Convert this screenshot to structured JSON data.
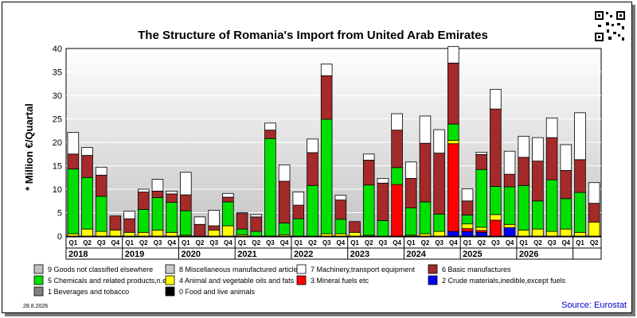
{
  "chart_data": {
    "type": "bar",
    "stacked": true,
    "title": "The Structure of Romania's Import from United Arab Emirates",
    "ylabel": "* Million €/Quartal",
    "ylim": [
      0,
      40
    ],
    "yticks": [
      0,
      5,
      10,
      15,
      20,
      25,
      30,
      35,
      40
    ],
    "grid": true,
    "legend_position": "bottom",
    "source": "Source: Eurostat",
    "date": "28.8.2026",
    "quarters": [
      "Q1",
      "Q2",
      "Q3",
      "Q4",
      "Q1",
      "Q2",
      "Q3",
      "Q4",
      "Q1",
      "Q2",
      "Q3",
      "Q4",
      "Q1",
      "Q2",
      "Q3",
      "Q4",
      "Q1",
      "Q2",
      "Q3",
      "Q4",
      "Q1",
      "Q2",
      "Q3",
      "Q4",
      "Q1",
      "Q2",
      "Q3",
      "Q4",
      "Q1",
      "Q2",
      "Q3",
      "Q4",
      "Q1",
      "Q2",
      "Q3",
      "Q4",
      "Q1",
      "Q2"
    ],
    "years": [
      "2018",
      "2019",
      "2020",
      "2021",
      "2022",
      "2023",
      "2024",
      "2025",
      "2026"
    ],
    "series": [
      {
        "name": "0 Food and live animals",
        "code": 0,
        "color": "#000000",
        "values": [
          0,
          0,
          0,
          0,
          0,
          0,
          0,
          0,
          0,
          0,
          0,
          0,
          0,
          0,
          0,
          0,
          0,
          0,
          0,
          0,
          0,
          0,
          0,
          0,
          0,
          0,
          0,
          0,
          0,
          0,
          0,
          0,
          0,
          0,
          0,
          0,
          0,
          0
        ]
      },
      {
        "name": "1 Beverages and tobacco",
        "code": 1,
        "color": "#808080",
        "values": [
          0,
          0,
          0,
          0,
          0,
          0,
          0,
          0,
          0,
          0,
          0,
          0,
          0,
          0,
          0,
          0,
          0,
          0,
          0,
          0,
          0,
          0,
          0,
          0,
          0,
          0,
          0,
          0,
          0,
          0,
          0,
          0,
          0,
          0,
          0,
          0,
          0,
          0
        ]
      },
      {
        "name": "2 Crude materials,inedible,except fuels",
        "code": 2,
        "color": "#0000ff",
        "values": [
          0,
          0,
          0,
          0,
          0,
          0,
          0,
          0,
          0,
          0,
          0,
          0,
          0,
          0,
          0,
          0,
          0,
          0,
          0,
          0,
          0,
          0,
          0,
          0,
          0,
          0,
          0,
          1.0,
          1.0,
          0.8,
          0,
          1.8,
          0,
          0,
          0,
          0,
          0,
          0
        ]
      },
      {
        "name": "3 Mineral fuels etc",
        "code": 3,
        "color": "#ff0000",
        "values": [
          0,
          0,
          0,
          0,
          0,
          0,
          0,
          0,
          0,
          0,
          0,
          0,
          0,
          0,
          0,
          0,
          0,
          0,
          0,
          0,
          0,
          0,
          0,
          11.0,
          0,
          0,
          0,
          18.7,
          0.6,
          0.4,
          3.4,
          0,
          0,
          0,
          0,
          0,
          0,
          0
        ]
      },
      {
        "name": "4 Animal and vegetable oils and fats",
        "code": 4,
        "color": "#ffff00",
        "values": [
          0.5,
          1.5,
          1.0,
          1.3,
          0.8,
          0.8,
          1.3,
          0.8,
          0.2,
          0,
          1.3,
          2.2,
          0.3,
          0,
          0,
          0.3,
          0,
          0,
          0.5,
          0.5,
          0.8,
          0.2,
          0,
          0,
          0.2,
          0.5,
          1.0,
          0.7,
          1.0,
          0.7,
          1.2,
          0.7,
          1.3,
          1.5,
          1.0,
          1.5,
          0.8,
          3.0
        ]
      },
      {
        "name": "5 Chemicals and related products,n.e.s.",
        "code": 5,
        "color": "#00e000",
        "values": [
          13.8,
          11.0,
          7.5,
          0,
          0,
          4.9,
          6.9,
          6.4,
          5.2,
          0,
          0,
          5.1,
          1.2,
          1.0,
          20.8,
          2.5,
          3.7,
          10.8,
          24.4,
          3.1,
          0,
          10.7,
          3.3,
          3.6,
          5.8,
          6.8,
          3.7,
          3.5,
          1.9,
          12.3,
          6.0,
          8.0,
          9.5,
          6.0,
          11.0,
          6.5,
          8.5,
          0
        ]
      },
      {
        "name": "6 Basic manufactures",
        "code": 6,
        "color": "#a52a2a",
        "values": [
          3.2,
          4.7,
          4.5,
          3.0,
          2.9,
          3.7,
          1.4,
          1.8,
          3.4,
          2.5,
          0.9,
          1.0,
          3.3,
          3.1,
          1.8,
          8.9,
          2.9,
          7.0,
          9.3,
          4.1,
          2.3,
          5.3,
          8.0,
          8.0,
          6.3,
          12.5,
          13.0,
          13.0,
          3.0,
          3.2,
          16.5,
          2.7,
          6.0,
          8.5,
          9.0,
          6.0,
          7.0,
          4.0
        ]
      },
      {
        "name": "7 Machinery,transport equipment",
        "code": 7,
        "color": "#ffffff",
        "values": [
          4.6,
          1.7,
          1.7,
          0,
          1.6,
          0.6,
          2.5,
          0.6,
          4.8,
          1.6,
          3.3,
          0.8,
          0.2,
          0.5,
          1.5,
          3.5,
          2.8,
          2.9,
          2.5,
          1.0,
          0,
          1.3,
          1.0,
          3.5,
          3.5,
          5.8,
          5.0,
          3.5,
          2.6,
          0.5,
          4.2,
          4.9,
          4.5,
          5.0,
          4.2,
          5.5,
          10.0,
          4.4
        ]
      },
      {
        "name": "8 Miscellaneous manufactured articles",
        "code": 8,
        "color": "#c8c8c8",
        "values": [
          0,
          0,
          0,
          0,
          0,
          0,
          0,
          0,
          0,
          0,
          0,
          0,
          0,
          0,
          0,
          0,
          0,
          0,
          0,
          0,
          0,
          0,
          0,
          0,
          0,
          0,
          0,
          0,
          0,
          0,
          0,
          0,
          0,
          0,
          0,
          0,
          0,
          0
        ]
      },
      {
        "name": "9 Goods not classified elsewhere",
        "code": 9,
        "color": "#c0c0c0",
        "values": [
          0,
          0,
          0,
          0,
          0,
          0,
          0,
          0,
          0,
          0,
          0,
          0,
          0,
          0,
          0,
          0,
          0,
          0,
          0,
          0,
          0,
          0,
          0,
          0,
          0,
          0,
          0,
          0,
          0,
          0,
          0,
          0,
          0,
          0,
          0,
          0,
          0,
          0
        ]
      }
    ],
    "legend_order": [
      9,
      8,
      7,
      6,
      5,
      4,
      3,
      2,
      1,
      0
    ]
  }
}
